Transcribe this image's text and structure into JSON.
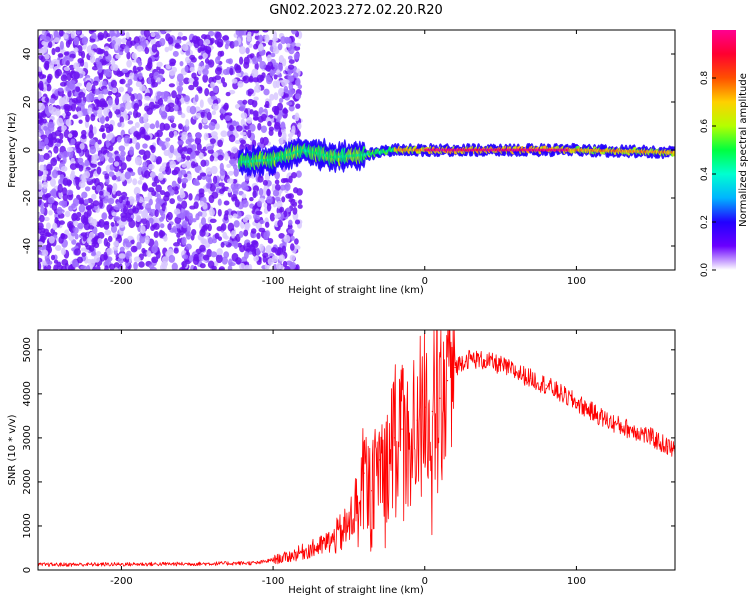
{
  "title": "GN02.2023.272.02.20.R20",
  "chart_data": [
    {
      "type": "heatmap",
      "xlabel": "Height of straight line (km)",
      "ylabel": "Frequency (Hz)",
      "xlim": [
        -255,
        165
      ],
      "ylim": [
        -50,
        50
      ],
      "xticks": [
        -200,
        -100,
        0,
        100
      ],
      "yticks": [
        40,
        20,
        0,
        -20,
        -40
      ],
      "colorbar": {
        "label": "Normalized spectral amplitude",
        "range": [
          0,
          1
        ],
        "ticks": [
          0.0,
          0.2,
          0.4,
          0.6,
          0.8
        ],
        "colormap": [
          "#ffffff",
          "#6a00ff",
          "#2200ff",
          "#00b4ff",
          "#00ffd0",
          "#00ff40",
          "#b4ff00",
          "#ffd000",
          "#ff5000",
          "#ff0030",
          "#ff0090"
        ]
      },
      "features": {
        "noise_region_x": [
          -255,
          -90
        ],
        "signal_band_center_hz": [
          [
            -120,
            -5
          ],
          [
            -100,
            -4
          ],
          [
            -80,
            0
          ],
          [
            -60,
            -3
          ],
          [
            -40,
            -2
          ],
          [
            -20,
            0
          ],
          [
            0,
            0
          ],
          [
            50,
            0
          ],
          [
            100,
            0
          ],
          [
            165,
            -1
          ]
        ],
        "peak_region_x": [
          0,
          95
        ]
      }
    },
    {
      "type": "line",
      "xlabel": "Height of straight line (km)",
      "ylabel": "SNR (10 * v/v)",
      "xlim": [
        -255,
        165
      ],
      "ylim": [
        0,
        5450
      ],
      "xticks": [
        -200,
        -100,
        0,
        100
      ],
      "yticks": [
        0,
        1000,
        2000,
        3000,
        4000,
        5000
      ],
      "color": "#ff0000",
      "series": [
        {
          "x": [
            -255,
            -200,
            -150,
            -110,
            -90,
            -80,
            -70,
            -60,
            -50,
            -45,
            -40,
            -35,
            -30,
            -25,
            -20,
            -15,
            -10,
            -5,
            0,
            5,
            10,
            15,
            20,
            25,
            30,
            40,
            50,
            60,
            70,
            80,
            90,
            100,
            110,
            120,
            130,
            140,
            150,
            160,
            165
          ],
          "y": [
            120,
            130,
            140,
            160,
            300,
            420,
            520,
            700,
            1000,
            1500,
            2200,
            1800,
            2500,
            2400,
            3000,
            3200,
            2800,
            3400,
            3700,
            3600,
            3900,
            4300,
            4600,
            4750,
            4800,
            4750,
            4650,
            4500,
            4350,
            4200,
            4000,
            3800,
            3600,
            3400,
            3250,
            3150,
            3000,
            2800,
            2700
          ]
        }
      ]
    }
  ]
}
